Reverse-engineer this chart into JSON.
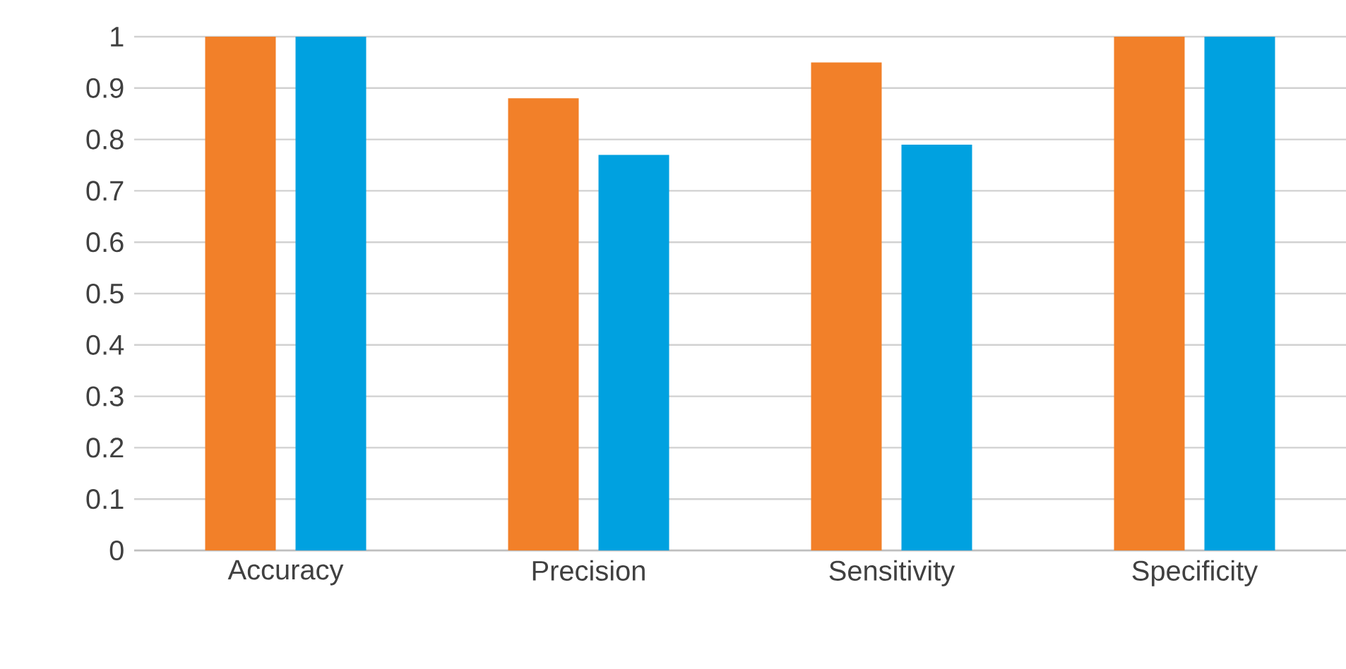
{
  "chart_data": {
    "type": "bar",
    "categories": [
      "Accuracy",
      "Precision",
      "Sensitivity",
      "Specificity"
    ],
    "series": [
      {
        "color": "#f28029",
        "values": [
          1,
          0.88,
          0.95,
          1
        ]
      },
      {
        "color": "#00a1e0",
        "values": [
          1,
          0.77,
          0.79,
          1
        ]
      }
    ],
    "ylim": [
      0,
      1
    ],
    "yticks": [
      0,
      0.1,
      0.2,
      0.3,
      0.4,
      0.5,
      0.6,
      0.7,
      0.8,
      0.9,
      1
    ],
    "grid": "y"
  }
}
